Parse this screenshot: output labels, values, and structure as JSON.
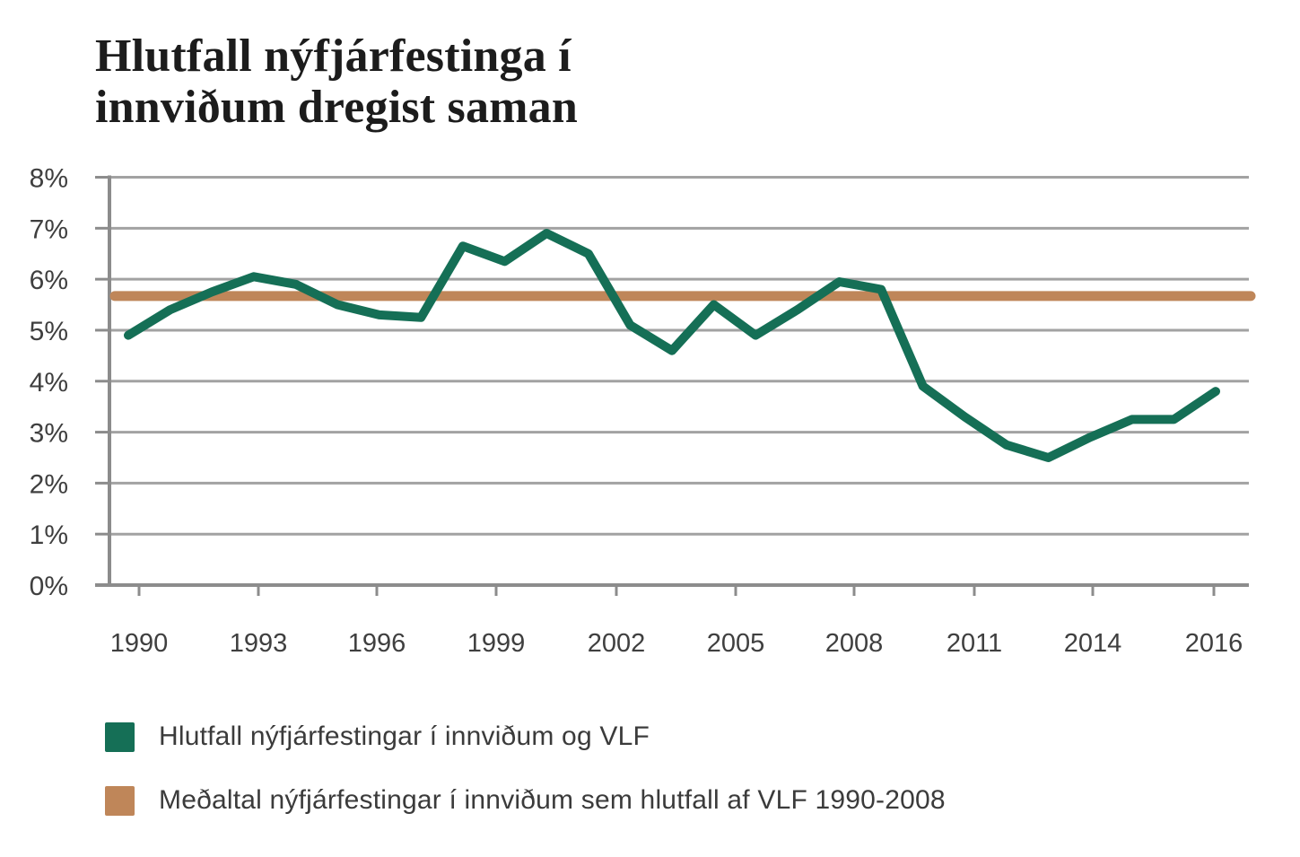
{
  "title": {
    "line1": "Hlutfall nýfjárfestinga í",
    "line2": "innviðum dregist saman"
  },
  "chart_data": {
    "type": "line",
    "x": [
      1990,
      1991,
      1992,
      1993,
      1994,
      1995,
      1996,
      1997,
      1998,
      1999,
      2000,
      2001,
      2002,
      2003,
      2004,
      2005,
      2006,
      2007,
      2008,
      2009,
      2010,
      2011,
      2012,
      2013,
      2014,
      2015,
      2016
    ],
    "series": [
      {
        "name": "Hlutfall nýfjárfestingar í innviðum og VLF",
        "type": "line",
        "color": "#156f56",
        "values": [
          4.9,
          5.4,
          5.75,
          6.05,
          5.9,
          5.5,
          5.3,
          5.25,
          6.65,
          6.35,
          6.9,
          6.5,
          5.1,
          4.6,
          5.5,
          4.9,
          5.4,
          5.95,
          5.8,
          3.9,
          3.3,
          2.75,
          2.5,
          2.9,
          3.25,
          3.25,
          3.8
        ]
      },
      {
        "name": "Meðaltal nýfjárfestingar í innviðum sem hlutfall af VLF 1990-2008",
        "type": "reference_line",
        "color": "#bf8659",
        "value": 5.67
      }
    ],
    "ylim": [
      0,
      8
    ],
    "ytick_labels": [
      "0%",
      "1%",
      "2%",
      "3%",
      "4%",
      "5%",
      "6%",
      "7%",
      "8%"
    ],
    "xtick_labels": [
      "1990",
      "1993",
      "1996",
      "1999",
      "2002",
      "2005",
      "2008",
      "2011",
      "2014",
      "2016"
    ],
    "grid": true,
    "legend_position": "bottom-left"
  },
  "legend": {
    "items": [
      {
        "label": "Hlutfall nýfjárfestingar í innviðum og VLF",
        "color": "#156f56"
      },
      {
        "label": "Meðaltal nýfjárfestingar í innviðum sem hlutfall af VLF 1990-2008",
        "color": "#bf8659"
      }
    ]
  },
  "colors": {
    "background": "#ffffff",
    "grid": "#a2a2a2",
    "axis": "#8c8c8c",
    "tick_text": "#3f3f3f",
    "title_text": "#1c1c1c"
  }
}
